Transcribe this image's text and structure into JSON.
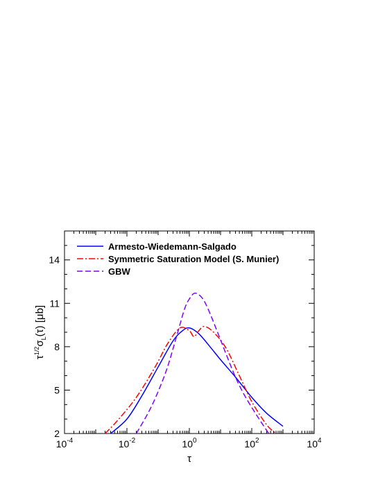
{
  "chart_data": {
    "type": "line",
    "xlabel": "τ",
    "ylabel": "τ^1/2 σ_L(τ) [μb]",
    "xscale": "log",
    "xlim": [
      0.0001,
      10000
    ],
    "ylim": [
      2,
      16
    ],
    "x_ticks": [
      {
        "value": 0.0001,
        "base": "10",
        "exp": "-4"
      },
      {
        "value": 0.01,
        "base": "10",
        "exp": "-2"
      },
      {
        "value": 1,
        "base": "10",
        "exp": "0"
      },
      {
        "value": 100,
        "base": "10",
        "exp": "2"
      },
      {
        "value": 10000,
        "base": "10",
        "exp": "4"
      }
    ],
    "y_ticks": [
      {
        "value": 2,
        "label": "2"
      },
      {
        "value": 5,
        "label": "5"
      },
      {
        "value": 8,
        "label": "8"
      },
      {
        "value": 11,
        "label": "11"
      },
      {
        "value": 14,
        "label": "14"
      }
    ],
    "legend_position": "top-left",
    "series": [
      {
        "name": "Armesto-Wiedemann-Salgado",
        "color": "#0000ff",
        "dash": "solid",
        "x": [
          0.003,
          0.01,
          0.03,
          0.1,
          0.3,
          0.6,
          1.0,
          2.0,
          5.0,
          10,
          30,
          100,
          300,
          1000
        ],
        "y": [
          2.0,
          3.0,
          4.6,
          6.6,
          8.4,
          9.1,
          9.3,
          8.9,
          7.9,
          7.1,
          5.9,
          4.5,
          3.4,
          2.5
        ]
      },
      {
        "name": "Symmetric Saturation Model (S. Munier)",
        "color": "#ff0000",
        "dash": "dashdot",
        "x": [
          0.002,
          0.005,
          0.02,
          0.08,
          0.2,
          0.5,
          1.0,
          1.4,
          2.0,
          3.0,
          6.0,
          15,
          40,
          100,
          300,
          600
        ],
        "y": [
          2.0,
          2.9,
          4.5,
          6.6,
          8.2,
          9.3,
          9.1,
          8.7,
          9.1,
          9.4,
          9.0,
          7.9,
          6.0,
          4.2,
          2.6,
          2.0
        ]
      },
      {
        "name": "GBW",
        "color": "#8000ff",
        "dash": "dashed",
        "x": [
          0.02,
          0.05,
          0.1,
          0.2,
          0.4,
          0.7,
          1.0,
          1.5,
          2.5,
          4.0,
          8.0,
          15,
          30,
          60,
          150,
          350
        ],
        "y": [
          2.0,
          3.5,
          4.9,
          6.6,
          8.8,
          10.6,
          11.3,
          11.7,
          11.4,
          10.6,
          9.0,
          7.5,
          5.9,
          4.6,
          3.2,
          2.0
        ]
      }
    ]
  }
}
